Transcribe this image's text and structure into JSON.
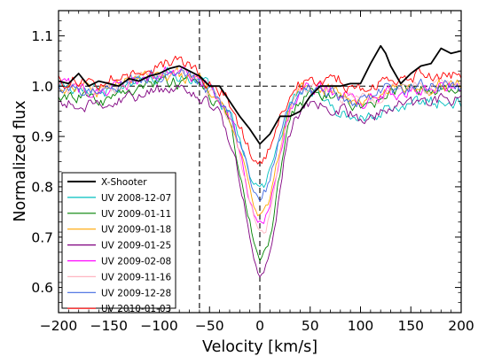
{
  "chart_data": {
    "type": "line",
    "title": "",
    "xlabel": "Velocity [km/s]",
    "ylabel": "Normalized flux",
    "xlim": [
      -200,
      200
    ],
    "ylim": [
      0.55,
      1.15
    ],
    "xticks": [
      -200,
      -150,
      -100,
      -50,
      0,
      50,
      100,
      150,
      200
    ],
    "xtick_labels": [
      "−200",
      "−150",
      "−100",
      "−50",
      "0",
      "50",
      "100",
      "150",
      "200"
    ],
    "yticks": [
      0.6,
      0.7,
      0.8,
      0.9,
      1.0,
      1.1
    ],
    "ytick_labels": [
      "0.6",
      "0.7",
      "0.8",
      "0.9",
      "1.0",
      "1.1"
    ],
    "grid": false,
    "legend_position": "bottom-left",
    "reference_lines": {
      "vertical_dashed_at_x": [
        -60,
        0
      ],
      "horizontal_dashed_at_y": 1.0
    },
    "series": [
      {
        "name": "X-Shooter",
        "color": "#000000",
        "style": "bold-line",
        "x": [
          -200,
          -190,
          -180,
          -170,
          -160,
          -150,
          -140,
          -130,
          -120,
          -110,
          -100,
          -90,
          -80,
          -70,
          -60,
          -50,
          -40,
          -30,
          -20,
          -10,
          0,
          10,
          20,
          30,
          40,
          50,
          60,
          70,
          80,
          90,
          100,
          110,
          120,
          125,
          130,
          140,
          150,
          160,
          170,
          180,
          190,
          200
        ],
        "y": [
          1.01,
          1.005,
          1.025,
          1.0,
          1.01,
          1.005,
          1.0,
          1.015,
          1.01,
          1.02,
          1.025,
          1.035,
          1.04,
          1.03,
          1.02,
          1.0,
          1.0,
          0.97,
          0.94,
          0.915,
          0.885,
          0.905,
          0.94,
          0.94,
          0.95,
          0.98,
          1.0,
          1.0,
          1.0,
          1.005,
          1.005,
          1.045,
          1.08,
          1.065,
          1.04,
          1.005,
          1.025,
          1.04,
          1.045,
          1.075,
          1.065,
          1.07
        ]
      },
      {
        "name": "UV 2008-12-07",
        "color": "#00BFBF",
        "continuum": 1.0,
        "depth": 0.175,
        "red_offset": -0.035
      },
      {
        "name": "UV 2009-01-11",
        "color": "#008000",
        "continuum": 0.985,
        "depth": 0.3,
        "red_offset": 0.01
      },
      {
        "name": "UV 2009-01-18",
        "color": "#FFA500",
        "continuum": 1.0,
        "depth": 0.23,
        "red_offset": 0.0
      },
      {
        "name": "UV 2009-01-25",
        "color": "#800080",
        "continuum": 0.97,
        "depth": 0.32,
        "red_offset": 0.0
      },
      {
        "name": "UV 2009-02-08",
        "color": "#FF00FF",
        "continuum": 1.0,
        "depth": 0.25,
        "red_offset": -0.005
      },
      {
        "name": "UV 2009-11-16",
        "color": "#FFB6C1",
        "continuum": 1.0,
        "depth": 0.26,
        "red_offset": 0.0
      },
      {
        "name": "UV 2009-12-28",
        "color": "#4169E1",
        "continuum": 1.0,
        "depth": 0.19,
        "red_offset": 0.0
      },
      {
        "name": "UV 2010-01-03",
        "color": "#FF0000",
        "continuum": 1.015,
        "depth": 0.14,
        "red_offset": 0.01
      }
    ]
  }
}
